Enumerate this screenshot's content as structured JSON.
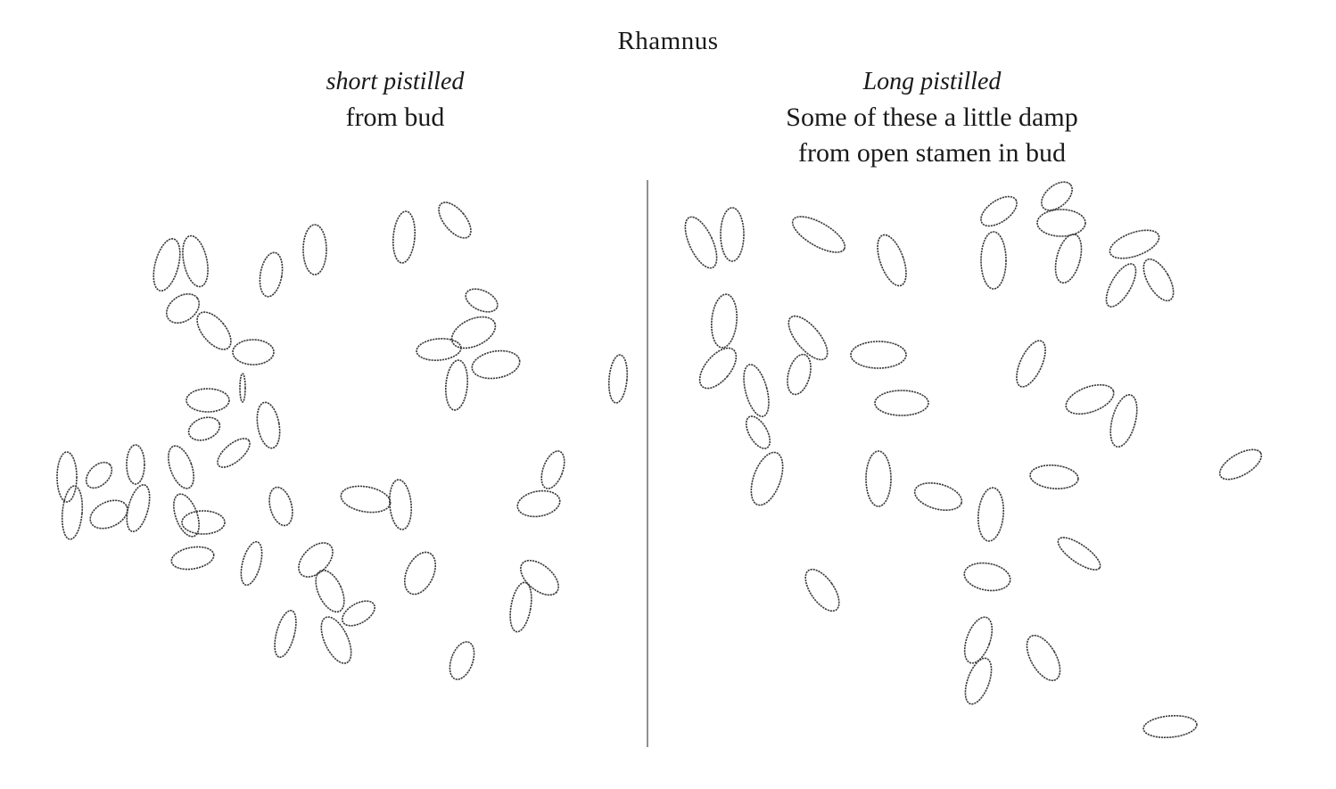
{
  "title": "Rhamnus",
  "left_panel": {
    "label": "short pistilled",
    "note_lines": [
      "from bud"
    ]
  },
  "right_panel": {
    "label": "Long pistilled",
    "note_lines": [
      "Some of these a little damp",
      "from open stamen in bud"
    ]
  }
}
